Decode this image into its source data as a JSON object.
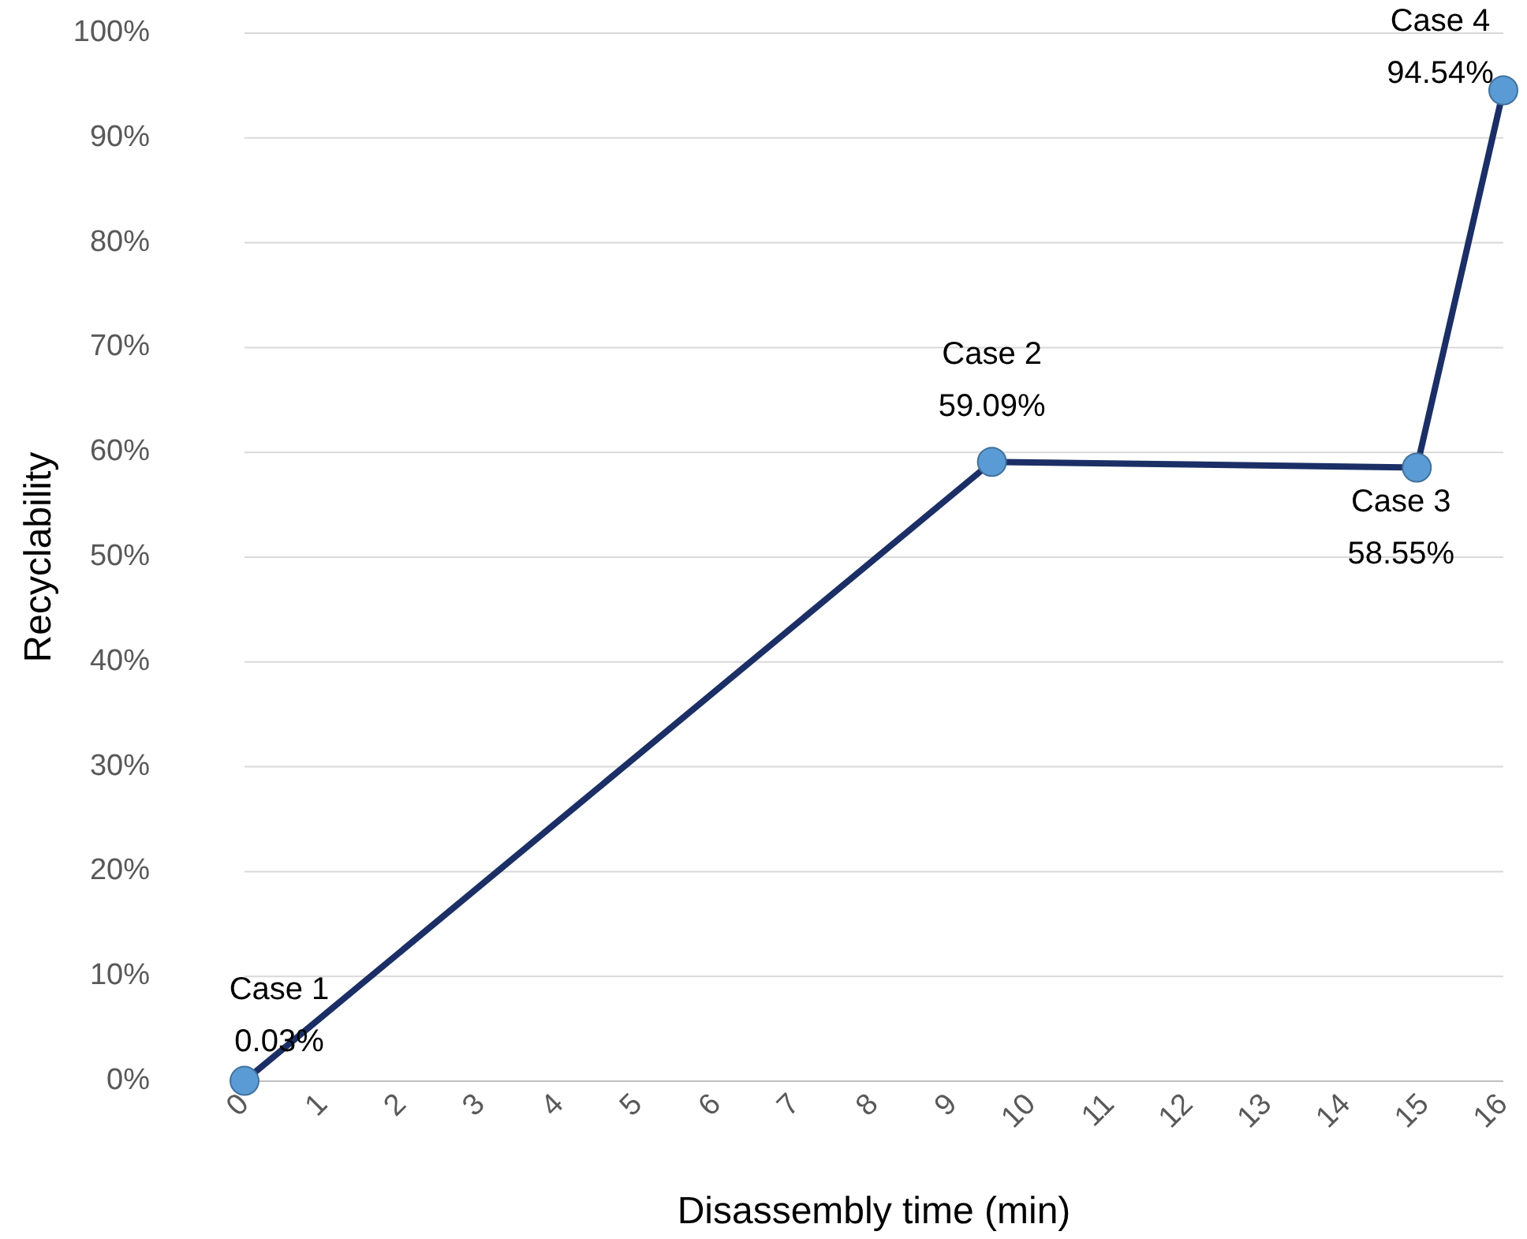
{
  "chart_data": {
    "type": "line",
    "xlabel": "Disassembly time (min)",
    "ylabel": "Recyclability",
    "x": [
      0,
      9.5,
      14.9,
      16
    ],
    "series": [
      {
        "color": "#1b2f66",
        "values": [
          0.03,
          59.09,
          58.55,
          94.54
        ],
        "value_labels": [
          "0.03%",
          "59.09%",
          "58.55%",
          "94.54%"
        ]
      }
    ],
    "annotations": [
      {
        "text": "Case 1",
        "x": 0,
        "y": 0.03
      },
      {
        "text": "Case 2",
        "x": 9.5,
        "y": 59.09
      },
      {
        "text": "Case 3",
        "x": 14.9,
        "y": 58.55
      },
      {
        "text": "Case 4",
        "x": 16,
        "y": 94.54
      }
    ],
    "xlim": [
      0,
      16
    ],
    "xticks": [
      0,
      1,
      2,
      3,
      4,
      5,
      6,
      7,
      8,
      9,
      10,
      11,
      12,
      13,
      14,
      15,
      16
    ],
    "ylim": [
      0,
      100
    ],
    "yticks": [
      {
        "value": 0,
        "label": "0%"
      },
      {
        "value": 10,
        "label": "10%"
      },
      {
        "value": 20,
        "label": "20%"
      },
      {
        "value": 30,
        "label": "30%"
      },
      {
        "value": 40,
        "label": "40%"
      },
      {
        "value": 50,
        "label": "50%"
      },
      {
        "value": 60,
        "label": "60%"
      },
      {
        "value": 70,
        "label": "70%"
      },
      {
        "value": 80,
        "label": "80%"
      },
      {
        "value": 90,
        "label": "90%"
      },
      {
        "value": 100,
        "label": "100%"
      }
    ],
    "grid": "y",
    "marker": "circle",
    "line_style": "solid"
  }
}
